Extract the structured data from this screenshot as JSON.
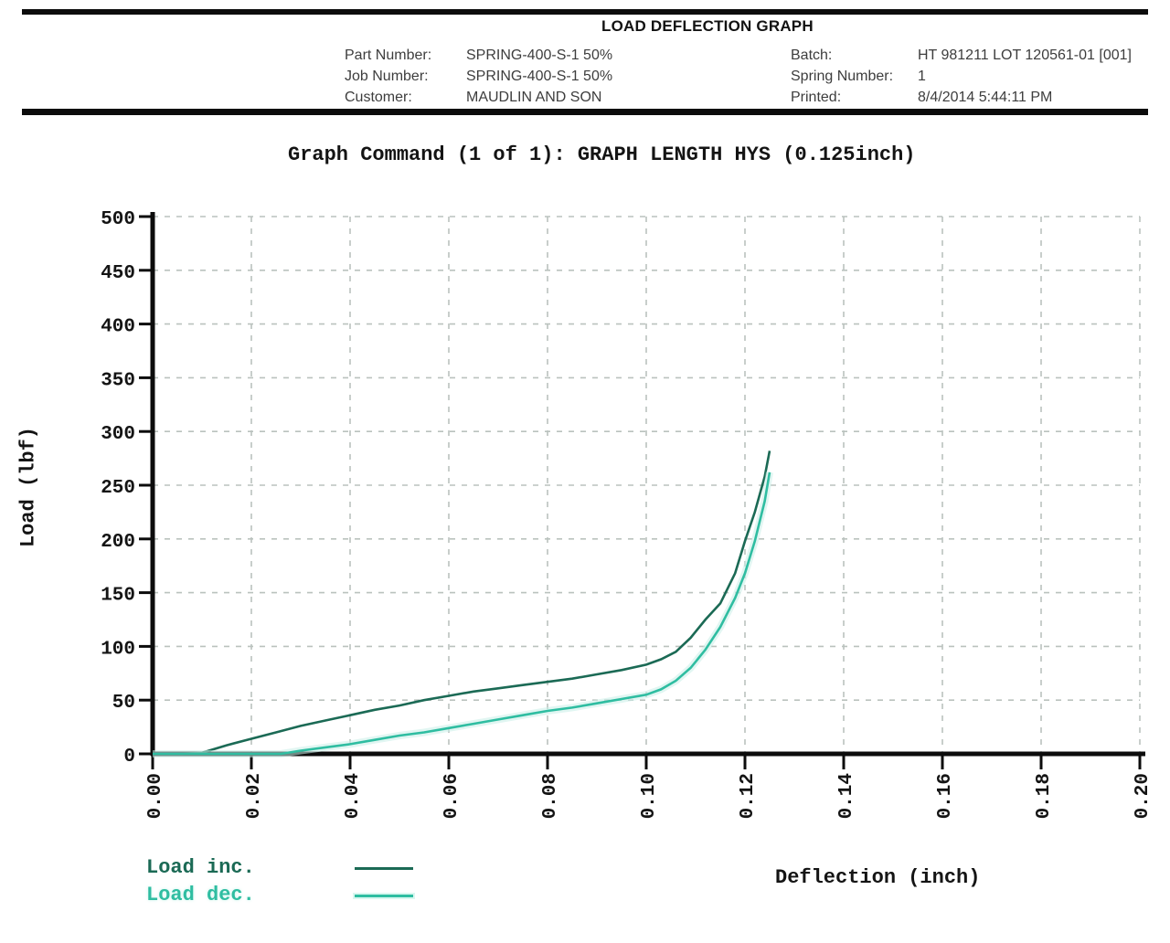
{
  "header": {
    "title": "LOAD DEFLECTION GRAPH",
    "fields_left": [
      {
        "label": "Part Number:",
        "value": "SPRING-400-S-1 50%"
      },
      {
        "label": "Job Number:",
        "value": "SPRING-400-S-1 50%"
      },
      {
        "label": "Customer:",
        "value": "MAUDLIN AND SON"
      }
    ],
    "fields_right": [
      {
        "label": "Batch:",
        "value": "HT 981211 LOT 120561-01 [001]"
      },
      {
        "label": "Spring Number:",
        "value": "1"
      },
      {
        "label": "Printed:",
        "value": "8/4/2014 5:44:11 PM"
      }
    ]
  },
  "chart_data": {
    "type": "line",
    "title": "Graph Command (1 of 1): GRAPH LENGTH HYS (0.125inch)",
    "xlabel": "Deflection (inch)",
    "ylabel": "Load (lbf)",
    "xlim": [
      0,
      0.2
    ],
    "ylim": [
      0,
      500
    ],
    "grid": true,
    "legend_position": "bottom-left",
    "xtick_values": [
      0,
      0.02,
      0.04,
      0.06,
      0.08,
      0.1,
      0.12,
      0.14,
      0.16,
      0.18,
      0.2
    ],
    "xtick_labels": [
      "0.00",
      "0.02",
      "0.04",
      "0.06",
      "0.08",
      "0.10",
      "0.12",
      "0.14",
      "0.16",
      "0.18",
      "0.20"
    ],
    "ytick_values": [
      0,
      50,
      100,
      150,
      200,
      250,
      300,
      350,
      400,
      450,
      500
    ],
    "ytick_labels": [
      "0",
      "50",
      "100",
      "150",
      "200",
      "250",
      "300",
      "350",
      "400",
      "450",
      "500"
    ],
    "series": [
      {
        "name": "Load inc.",
        "color": "#1b6a55",
        "points": [
          [
            0.0,
            0
          ],
          [
            0.006,
            0
          ],
          [
            0.01,
            1
          ],
          [
            0.015,
            8
          ],
          [
            0.02,
            14
          ],
          [
            0.025,
            20
          ],
          [
            0.03,
            26
          ],
          [
            0.035,
            31
          ],
          [
            0.04,
            36
          ],
          [
            0.045,
            41
          ],
          [
            0.05,
            45
          ],
          [
            0.055,
            50
          ],
          [
            0.06,
            54
          ],
          [
            0.065,
            58
          ],
          [
            0.07,
            61
          ],
          [
            0.075,
            64
          ],
          [
            0.08,
            67
          ],
          [
            0.085,
            70
          ],
          [
            0.09,
            74
          ],
          [
            0.095,
            78
          ],
          [
            0.1,
            83
          ],
          [
            0.103,
            88
          ],
          [
            0.106,
            95
          ],
          [
            0.109,
            108
          ],
          [
            0.112,
            125
          ],
          [
            0.115,
            140
          ],
          [
            0.118,
            168
          ],
          [
            0.12,
            198
          ],
          [
            0.122,
            225
          ],
          [
            0.124,
            258
          ],
          [
            0.125,
            282
          ]
        ]
      },
      {
        "name": "Load dec.",
        "color": "#2fbda1",
        "halo": "#c9efe7",
        "points": [
          [
            0.0,
            0
          ],
          [
            0.02,
            0
          ],
          [
            0.026,
            0
          ],
          [
            0.03,
            3
          ],
          [
            0.035,
            6
          ],
          [
            0.04,
            9
          ],
          [
            0.045,
            13
          ],
          [
            0.05,
            17
          ],
          [
            0.055,
            20
          ],
          [
            0.06,
            24
          ],
          [
            0.065,
            28
          ],
          [
            0.07,
            32
          ],
          [
            0.075,
            36
          ],
          [
            0.08,
            40
          ],
          [
            0.085,
            43
          ],
          [
            0.09,
            47
          ],
          [
            0.095,
            51
          ],
          [
            0.1,
            55
          ],
          [
            0.103,
            60
          ],
          [
            0.106,
            68
          ],
          [
            0.109,
            80
          ],
          [
            0.112,
            97
          ],
          [
            0.115,
            118
          ],
          [
            0.118,
            145
          ],
          [
            0.12,
            168
          ],
          [
            0.122,
            198
          ],
          [
            0.124,
            235
          ],
          [
            0.125,
            262
          ]
        ]
      }
    ]
  }
}
